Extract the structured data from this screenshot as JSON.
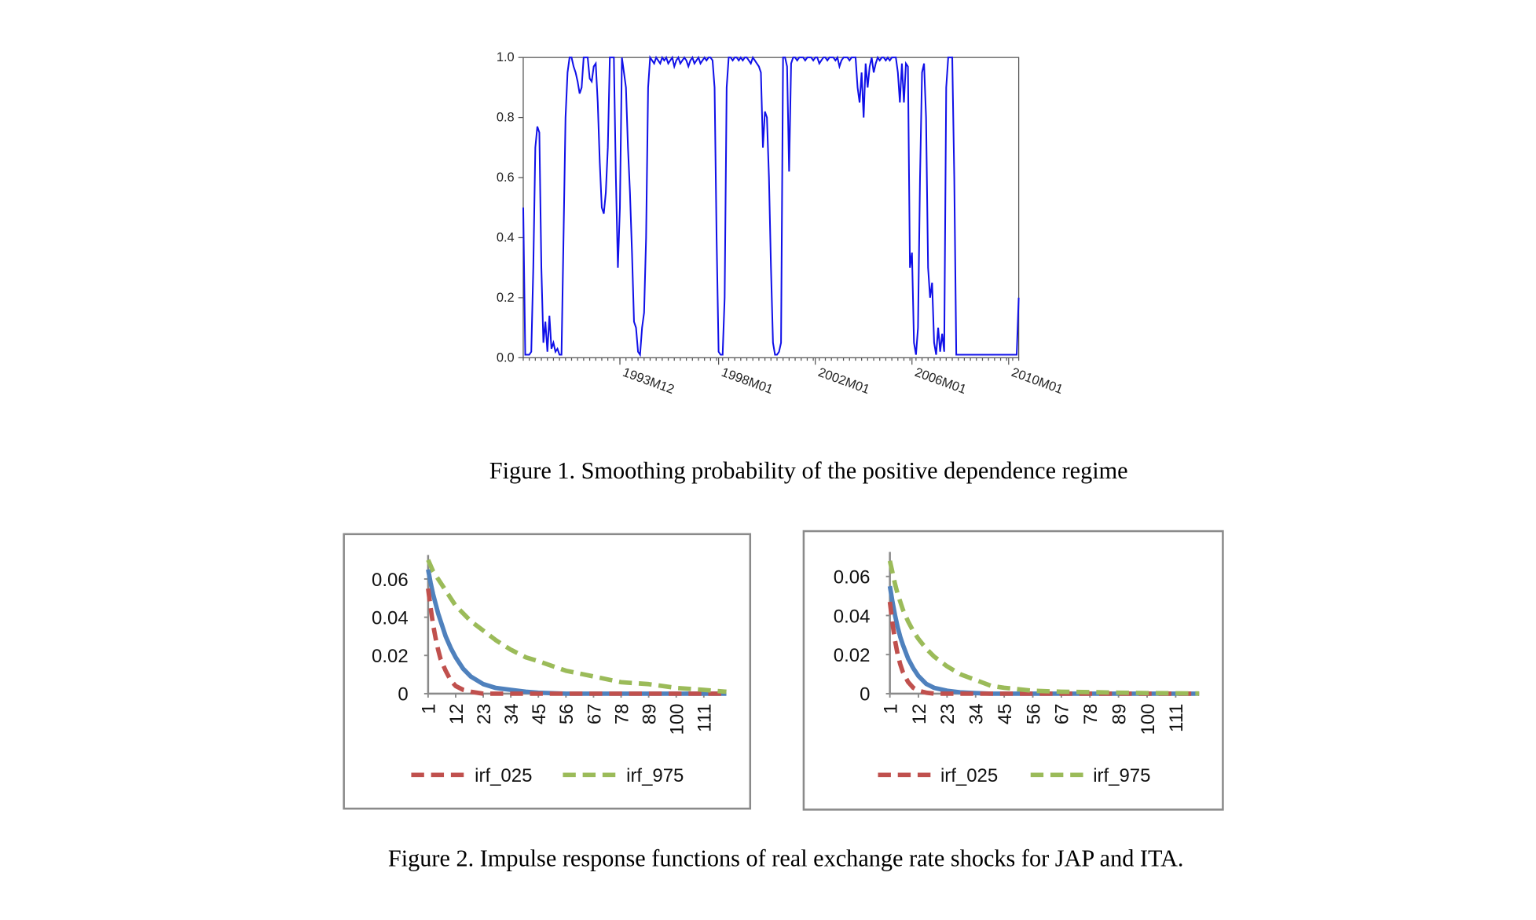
{
  "chart_data": [
    {
      "type": "line",
      "color": "#1010e8",
      "categories": [
        null,
        null,
        null,
        null,
        null,
        null,
        null,
        null,
        null,
        null,
        null,
        null,
        null,
        null,
        null,
        null,
        null,
        null,
        null,
        null,
        null,
        null,
        null,
        null,
        null,
        null,
        null,
        null,
        null,
        null,
        null,
        null,
        null,
        null,
        null,
        null,
        null,
        null,
        null,
        null,
        null,
        null,
        null,
        null,
        null,
        null,
        null,
        null,
        "1993M12",
        null,
        null,
        null,
        null,
        null,
        null,
        null,
        null,
        null,
        null,
        null,
        null,
        null,
        null,
        null,
        null,
        null,
        null,
        null,
        null,
        null,
        null,
        null,
        null,
        null,
        null,
        null,
        null,
        null,
        null,
        null,
        null,
        null,
        null,
        null,
        null,
        null,
        null,
        null,
        null,
        null,
        null,
        null,
        null,
        null,
        null,
        null,
        null,
        "1998M01",
        null,
        null,
        null,
        null,
        null,
        null,
        null,
        null,
        null,
        null,
        null,
        null,
        null,
        null,
        null,
        null,
        null,
        null,
        null,
        null,
        null,
        null,
        null,
        null,
        null,
        null,
        null,
        null,
        null,
        null,
        null,
        null,
        null,
        null,
        null,
        null,
        null,
        null,
        null,
        null,
        null,
        null,
        null,
        null,
        null,
        null,
        null,
        "2002M01",
        null,
        null,
        null,
        null,
        null,
        null,
        null,
        null,
        null,
        null,
        null,
        null,
        null,
        null,
        null,
        null,
        null,
        null,
        null,
        null,
        null,
        null,
        null,
        null,
        null,
        null,
        null,
        null,
        null,
        null,
        null,
        null,
        null,
        null,
        null,
        null,
        null,
        null,
        null,
        null,
        null,
        null,
        null,
        null,
        null,
        null,
        null,
        "2006M01",
        null,
        null,
        null,
        null,
        null,
        null,
        null,
        null,
        null,
        null,
        null,
        null,
        null,
        null,
        null,
        null,
        null,
        null,
        null,
        null,
        null,
        null,
        null,
        null,
        null,
        null,
        null,
        null,
        null,
        null,
        null,
        null,
        null,
        null,
        null,
        null,
        null,
        null,
        null,
        null,
        null,
        null,
        null,
        null,
        null,
        null,
        null,
        "2010M01",
        null,
        null,
        null,
        null,
        null
      ],
      "values": [
        0.5,
        0.01,
        0.01,
        0.01,
        0.02,
        0.3,
        0.7,
        0.77,
        0.75,
        0.3,
        0.05,
        0.12,
        0.02,
        0.14,
        0.03,
        0.05,
        0.02,
        0.03,
        0.01,
        0.01,
        0.4,
        0.8,
        0.95,
        1.0,
        1.0,
        0.97,
        0.95,
        0.92,
        0.88,
        0.9,
        1.0,
        1.0,
        1.0,
        0.93,
        0.92,
        0.97,
        0.98,
        0.85,
        0.65,
        0.5,
        0.48,
        0.55,
        0.7,
        1.0,
        1.0,
        1.0,
        0.6,
        0.3,
        0.5,
        1.0,
        0.95,
        0.9,
        0.7,
        0.55,
        0.35,
        0.12,
        0.1,
        0.02,
        0.01,
        0.1,
        0.15,
        0.4,
        0.9,
        1.0,
        0.99,
        0.98,
        1.0,
        0.99,
        0.98,
        1.0,
        0.99,
        1.0,
        0.98,
        0.99,
        1.0,
        0.97,
        0.99,
        1.0,
        0.98,
        0.99,
        1.0,
        0.99,
        0.97,
        0.99,
        1.0,
        0.98,
        0.99,
        1.0,
        0.98,
        0.99,
        1.0,
        0.99,
        1.0,
        1.0,
        0.99,
        0.9,
        0.4,
        0.02,
        0.01,
        0.01,
        0.2,
        0.9,
        1.0,
        1.0,
        0.99,
        1.0,
        1.0,
        0.99,
        1.0,
        0.99,
        1.0,
        1.0,
        0.99,
        0.98,
        1.0,
        0.99,
        0.98,
        0.97,
        0.95,
        0.7,
        0.82,
        0.8,
        0.6,
        0.3,
        0.05,
        0.01,
        0.01,
        0.02,
        0.05,
        1.0,
        1.0,
        0.97,
        0.62,
        0.98,
        1.0,
        1.0,
        0.99,
        1.0,
        1.0,
        1.0,
        0.99,
        1.0,
        1.0,
        1.0,
        0.99,
        1.0,
        1.0,
        0.98,
        0.99,
        1.0,
        1.0,
        0.99,
        1.0,
        1.0,
        1.0,
        0.99,
        1.0,
        0.97,
        0.99,
        1.0,
        1.0,
        1.0,
        0.99,
        1.0,
        1.0,
        1.0,
        0.9,
        0.85,
        0.95,
        0.8,
        0.98,
        0.9,
        0.97,
        1.0,
        0.95,
        0.98,
        1.0,
        0.99,
        1.0,
        1.0,
        0.99,
        1.0,
        0.99,
        1.0,
        1.0,
        1.0,
        0.95,
        0.85,
        0.98,
        0.85,
        0.98,
        0.97,
        0.3,
        0.35,
        0.05,
        0.01,
        0.1,
        0.6,
        0.95,
        0.98,
        0.8,
        0.3,
        0.2,
        0.25,
        0.05,
        0.01,
        0.1,
        0.02,
        0.08,
        0.02,
        0.9,
        1.0,
        1.0,
        1.0,
        0.6,
        0.01,
        0.01,
        0.01,
        0.01,
        0.01,
        0.01,
        0.01,
        0.01,
        0.01,
        0.01,
        0.01,
        0.01,
        0.01,
        0.01,
        0.01,
        0.01,
        0.01,
        0.01,
        0.01,
        0.01,
        0.01,
        0.01,
        0.01,
        0.01,
        0.01,
        0.01,
        0.01,
        0.01,
        0.01,
        0.01,
        0.01,
        0.2
      ],
      "ylim": [
        0,
        1
      ],
      "yticks": [
        {
          "value": 0,
          "label": "0.0"
        },
        0.2,
        0.4,
        0.6,
        0.8,
        {
          "value": 1,
          "label": "1.0"
        }
      ]
    },
    {
      "type": "line",
      "x": [
        1,
        2,
        3,
        4,
        5,
        6,
        8,
        10,
        12,
        15,
        18,
        23,
        28,
        34,
        40,
        45,
        56,
        67,
        78,
        89,
        100,
        111,
        120
      ],
      "series": [
        {
          "name": "irf_025",
          "color": "#c0504d",
          "values": [
            0.055,
            0.045,
            0.036,
            0.029,
            0.023,
            0.018,
            0.012,
            0.007,
            0.004,
            0.002,
            0.001,
            0,
            0,
            0,
            0,
            0,
            0,
            0,
            0,
            0,
            0,
            0,
            0
          ]
        },
        {
          "name": "irf_975",
          "color": "#9bbb59",
          "values": [
            0.07,
            0.067,
            0.064,
            0.062,
            0.06,
            0.058,
            0.054,
            0.05,
            0.046,
            0.042,
            0.038,
            0.033,
            0.028,
            0.023,
            0.019,
            0.017,
            0.012,
            0.009,
            0.006,
            0.005,
            0.003,
            0.002,
            0.001
          ]
        },
        {
          "color": "#4f81bd",
          "values": [
            0.065,
            0.058,
            0.052,
            0.047,
            0.042,
            0.038,
            0.03,
            0.024,
            0.019,
            0.013,
            0.009,
            0.005,
            0.003,
            0.002,
            0.001,
            0.0005,
            0,
            0,
            0,
            0,
            0,
            0,
            0
          ]
        }
      ],
      "xlim": [
        1,
        120
      ],
      "xticks": [
        1,
        12,
        23,
        34,
        45,
        56,
        67,
        78,
        89,
        100,
        111
      ],
      "ylim": [
        0,
        0.07
      ],
      "yticks": [
        0,
        0.02,
        0.04,
        0.06
      ]
    },
    {
      "type": "line",
      "x": [
        1,
        2,
        3,
        4,
        5,
        6,
        8,
        10,
        12,
        15,
        18,
        23,
        28,
        34,
        40,
        45,
        56,
        67,
        78,
        89,
        100,
        111,
        120
      ],
      "series": [
        {
          "name": "irf_025",
          "color": "#c0504d",
          "values": [
            0.047,
            0.036,
            0.027,
            0.02,
            0.015,
            0.011,
            0.006,
            0.003,
            0.0015,
            0.0005,
            0,
            0,
            0,
            0,
            0,
            0,
            0,
            0,
            0,
            0,
            0,
            0,
            0
          ]
        },
        {
          "name": "irf_975",
          "color": "#9bbb59",
          "values": [
            0.068,
            0.062,
            0.056,
            0.051,
            0.047,
            0.043,
            0.037,
            0.032,
            0.028,
            0.023,
            0.019,
            0.014,
            0.01,
            0.007,
            0.004,
            0.003,
            0.0015,
            0.001,
            0.0008,
            0.0005,
            0.0003,
            0.0002,
            0.0001
          ]
        },
        {
          "color": "#4f81bd",
          "values": [
            0.055,
            0.047,
            0.04,
            0.034,
            0.029,
            0.025,
            0.018,
            0.013,
            0.009,
            0.005,
            0.003,
            0.0015,
            0.0007,
            0.0003,
            0,
            0,
            0,
            0,
            0,
            0,
            0,
            0,
            0
          ]
        }
      ],
      "xlim": [
        1,
        120
      ],
      "xticks": [
        1,
        12,
        23,
        34,
        45,
        56,
        67,
        78,
        89,
        100,
        111
      ],
      "ylim": [
        0,
        0.07
      ],
      "yticks": [
        0,
        0.02,
        0.04,
        0.06
      ]
    }
  ],
  "captions": [
    "Figure 1. Smoothing probability of the positive dependence regime",
    "Figure 2. Impulse response functions of real exchange rate shocks for JAP and ITA."
  ]
}
